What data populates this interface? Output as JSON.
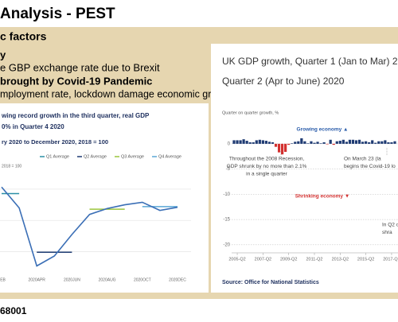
{
  "slide": {
    "title": "Analysis - PEST",
    "heading": "c factors",
    "bullets": [
      "y",
      "e GBP exchange rate due to Brexit",
      "brought by Covid-19 Pandemic",
      "mployment rate, lockdown damage economic growth"
    ],
    "footer": "68001"
  },
  "chart_data": [
    {
      "type": "line",
      "title": [
        "wing record growth in the third quarter, real GDP",
        "0% in Quarter 4 2020"
      ],
      "subtitle": "ry 2020 to December 2020, 2018 = 100",
      "y_label": "2018 = 100",
      "categories": [
        "FEB",
        null,
        "2020APR",
        null,
        "2020JUN",
        null,
        "2020AUG",
        null,
        "2020OCT",
        null,
        "2020DEC"
      ],
      "values": [
        100.7,
        94.0,
        75.4,
        78.6,
        85.5,
        91.9,
        93.8,
        95.0,
        95.8,
        93.2,
        94.2
      ],
      "color": "#3b6fb6",
      "series": [
        {
          "name": "Q1 Average",
          "color": "#2b8fa6",
          "values": [
            98.6,
            98.6,
            null,
            null,
            null,
            null,
            null,
            null,
            null,
            null,
            null
          ]
        },
        {
          "name": "Q2 Average",
          "color": "#1d3b73",
          "values": [
            null,
            null,
            79.8,
            79.8,
            79.8,
            null,
            null,
            null,
            null,
            null,
            null
          ]
        },
        {
          "name": "Q3 Average",
          "color": "#9bc53d",
          "values": [
            null,
            null,
            null,
            null,
            null,
            93.6,
            93.6,
            93.6,
            null,
            null,
            null
          ]
        },
        {
          "name": "Q4 Average",
          "color": "#5aa7d6",
          "values": [
            null,
            null,
            null,
            null,
            null,
            null,
            null,
            null,
            94.4,
            94.4,
            94.4
          ]
        }
      ],
      "ylim": [
        74,
        106
      ],
      "yticks": [
        80,
        90,
        100
      ],
      "grid": true
    },
    {
      "type": "bar",
      "title": [
        "UK GDP growth, Quarter 1 (Jan to Mar) 2",
        "Quarter 2 (Apr to June) 2020"
      ],
      "y_label": "Quarter on quarter growth, %",
      "categories": [
        null,
        "2005-Q2",
        null,
        null,
        null,
        null,
        null,
        null,
        null,
        "2007-Q2",
        null,
        null,
        null,
        null,
        null,
        null,
        null,
        "2009-Q2",
        null,
        null,
        null,
        null,
        null,
        null,
        null,
        "2011-Q2",
        null,
        null,
        null,
        null,
        null,
        null,
        null,
        "2013-Q2",
        null,
        null,
        null,
        null,
        null,
        null,
        null,
        "2015-Q2",
        null,
        null,
        null,
        null,
        null,
        null,
        null,
        "2017-Q2",
        null
      ],
      "values": [
        0.7,
        0.7,
        0.7,
        0.9,
        0.6,
        0.3,
        0.3,
        0.7,
        0.8,
        0.7,
        0.6,
        0.4,
        0.3,
        -0.6,
        -1.7,
        -2.1,
        -1.6,
        -0.2,
        0.1,
        0.4,
        0.5,
        1.1,
        0.5,
        0.1,
        0.5,
        0.2,
        0.4,
        0.1,
        0.3,
        -0.1,
        0.8,
        -0.2,
        0.5,
        0.6,
        0.8,
        0.4,
        0.8,
        0.8,
        0.7,
        0.8,
        0.4,
        0.5,
        0.3,
        0.7,
        0.2,
        0.5,
        0.5,
        0.7,
        0.3,
        0.3,
        0.5
      ],
      "positive_color": "#1f3b73",
      "negative_color": "#d3302f",
      "ylim": [
        -21,
        2.5
      ],
      "yticks": [
        0,
        -5,
        -10,
        -15,
        -20
      ],
      "grid": true,
      "annotations": [
        [
          "Growing economy ▲"
        ],
        [
          "Throughout the 2008 Recession,",
          "GDP shrunk by no more than 2.1%",
          "in a single quarter"
        ],
        [
          "On March 23 (la",
          "begins the Covid-19 lo"
        ],
        [
          "Shrinking economy ▼"
        ],
        [
          "In Q2 o",
          "shra"
        ]
      ],
      "source": "Source: Office for National Statistics"
    }
  ]
}
